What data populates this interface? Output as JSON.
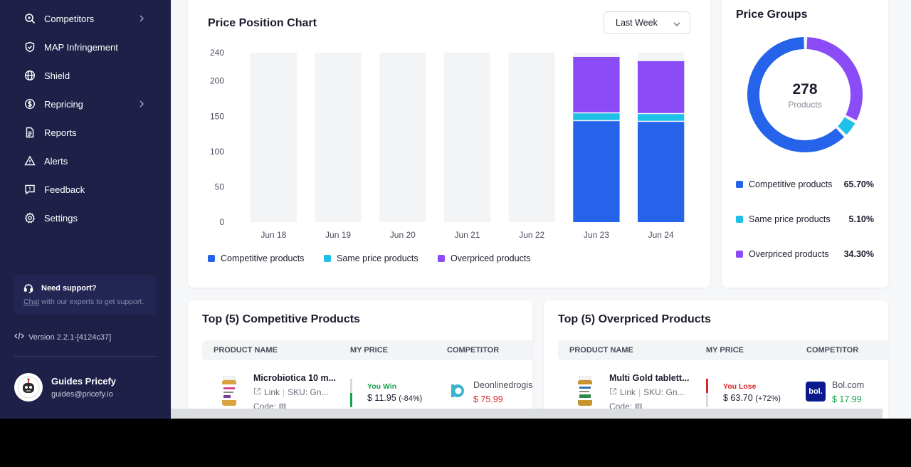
{
  "sidebar": {
    "items": [
      {
        "label": "Competitors",
        "icon": "search-icon",
        "has_chevron": true
      },
      {
        "label": "MAP Infringement",
        "icon": "shield-check-icon",
        "has_chevron": false
      },
      {
        "label": "Shield",
        "icon": "globe-icon",
        "has_chevron": false
      },
      {
        "label": "Repricing",
        "icon": "dollar-circle-icon",
        "has_chevron": true
      },
      {
        "label": "Reports",
        "icon": "document-icon",
        "has_chevron": false
      },
      {
        "label": "Alerts",
        "icon": "warning-icon",
        "has_chevron": false
      },
      {
        "label": "Feedback",
        "icon": "message-icon",
        "has_chevron": false
      },
      {
        "label": "Settings",
        "icon": "gear-icon",
        "has_chevron": false
      }
    ],
    "support": {
      "title": "Need support?",
      "link": "Chat",
      "text": " with our experts to get support."
    },
    "version": "Version 2.2.1-[4124c37]",
    "user": {
      "name": "Guides Pricefy",
      "email": "guides@pricefy.io"
    }
  },
  "price_chart": {
    "title": "Price Position Chart",
    "period": "Last Week"
  },
  "chart_data": {
    "type": "bar",
    "stacked": true,
    "categories": [
      "Jun 18",
      "Jun 19",
      "Jun 20",
      "Jun 21",
      "Jun 22",
      "Jun 23",
      "Jun 24"
    ],
    "series": [
      {
        "name": "Competitive products",
        "color": "#2563eb",
        "values": [
          0,
          0,
          0,
          0,
          0,
          143,
          142
        ]
      },
      {
        "name": "Same price products",
        "color": "#1ec0e8",
        "values": [
          0,
          0,
          0,
          0,
          0,
          11,
          11
        ]
      },
      {
        "name": "Overpriced products",
        "color": "#8b4cf7",
        "values": [
          0,
          0,
          0,
          0,
          0,
          80,
          75
        ]
      }
    ],
    "yticks": [
      0,
      50,
      100,
      150,
      200,
      240
    ],
    "ylim": [
      0,
      240
    ],
    "legend": "bottom-left"
  },
  "price_groups": {
    "title": "Price Groups",
    "total": "278",
    "total_label": "Products",
    "rows": [
      {
        "label": "Competitive products",
        "pct": "65.70%",
        "value": 65.7,
        "color": "#2563eb"
      },
      {
        "label": "Same price products",
        "pct": "5.10%",
        "value": 5.1,
        "color": "#1ec0e8"
      },
      {
        "label": "Overpriced products",
        "pct": "34.30%",
        "value": 34.3,
        "color": "#8b4cf7"
      }
    ]
  },
  "competitive_table": {
    "title": "Top (5) Competitive Products",
    "headers": [
      "PRODUCT NAME",
      "MY PRICE",
      "COMPETITOR"
    ],
    "row": {
      "name": "Microbiotica 10 m...",
      "link": "Link",
      "sku": "SKU: Gn...",
      "code": "Code:",
      "status": "You Win",
      "price": "$ 11.95",
      "change": "(-84%)",
      "competitor": "Deonlinedrogist.n",
      "competitor_price": "$ 75.99"
    }
  },
  "overpriced_table": {
    "title": "Top (5) Overpriced Products",
    "headers": [
      "PRODUCT NAME",
      "MY PRICE",
      "COMPETITOR"
    ],
    "row": {
      "name": "Multi Gold tablett...",
      "link": "Link",
      "sku": "SKU: Gn...",
      "code": "Code:",
      "status": "You Lose",
      "price": "$ 63.70",
      "change": "(+72%)",
      "competitor": "Bol.com",
      "competitor_logo": "bol.",
      "competitor_price": "$ 17.99"
    }
  },
  "colors": {
    "sidebar_bg": "#1e2048",
    "win": "#16a34a",
    "lose": "#dc2626"
  }
}
